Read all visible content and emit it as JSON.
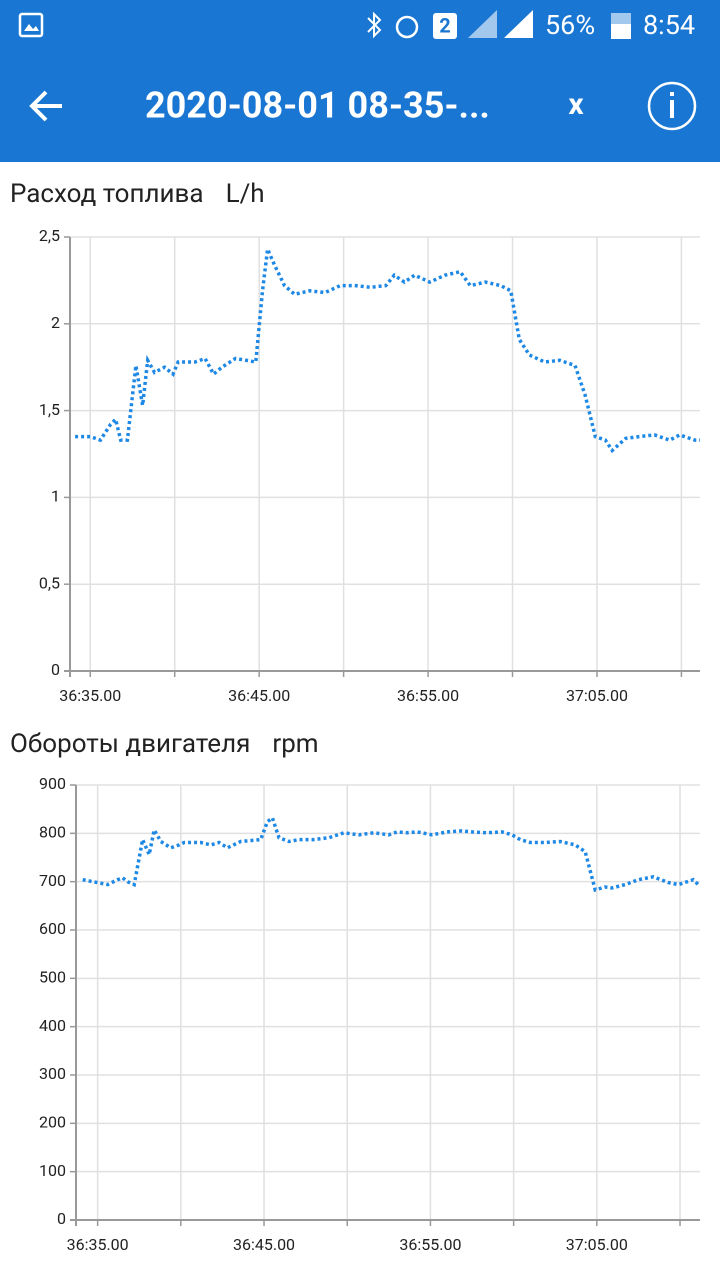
{
  "status_bar": {
    "sim": "2",
    "battery": "56%",
    "time": "8:54"
  },
  "app_bar": {
    "title": "2020-08-01 08-35-...",
    "close": "x"
  },
  "chart_data": [
    {
      "type": "line",
      "title": "Расход топлива",
      "unit": "L/h",
      "color": "#1e88e5",
      "grid": true,
      "x": [
        2194.1,
        2195.0,
        2195.6,
        2196.2,
        2196.5,
        2196.8,
        2197.2,
        2197.7,
        2198.1,
        2198.4,
        2198.8,
        2199.4,
        2199.9,
        2200.2,
        2201.2,
        2201.8,
        2202.3,
        2202.8,
        2203.6,
        2204.8,
        2205.2,
        2205.5,
        2205.9,
        2206.5,
        2207.1,
        2208.0,
        2208.9,
        2209.8,
        2210.7,
        2211.6,
        2212.5,
        2213.0,
        2213.6,
        2214.2,
        2215.1,
        2216.0,
        2216.9,
        2217.5,
        2218.4,
        2219.3,
        2219.9,
        2220.4,
        2221.0,
        2221.9,
        2222.8,
        2223.7,
        2224.3,
        2224.9,
        2225.5,
        2225.9,
        2226.7,
        2227.5,
        2228.4,
        2229.3,
        2229.9,
        2230.8,
        2231.1
      ],
      "values": [
        1.35,
        1.35,
        1.33,
        1.42,
        1.45,
        1.33,
        1.33,
        1.76,
        1.53,
        1.79,
        1.72,
        1.75,
        1.71,
        1.78,
        1.78,
        1.8,
        1.71,
        1.75,
        1.8,
        1.78,
        2.19,
        2.43,
        2.34,
        2.22,
        2.17,
        2.19,
        2.18,
        2.22,
        2.22,
        2.21,
        2.22,
        2.28,
        2.24,
        2.28,
        2.24,
        2.28,
        2.3,
        2.22,
        2.24,
        2.22,
        2.19,
        1.91,
        1.82,
        1.78,
        1.79,
        1.76,
        1.59,
        1.35,
        1.33,
        1.27,
        1.34,
        1.35,
        1.36,
        1.33,
        1.36,
        1.33,
        1.33
      ],
      "xlim": [
        2193.8,
        2231.1
      ],
      "xticks": [
        {
          "value": 2195,
          "label": "36:35.00"
        },
        {
          "value": 2205,
          "label": "36:45.00"
        },
        {
          "value": 2215,
          "label": "36:55.00"
        },
        {
          "value": 2225,
          "label": "37:05.00"
        }
      ],
      "xminor": [
        2200,
        2210,
        2220,
        2230
      ],
      "ylim": [
        0,
        2.5
      ],
      "yticks": [
        0,
        {
          "value": 0.5,
          "label": "0,5"
        },
        1,
        {
          "value": 1.5,
          "label": "1,5"
        },
        2,
        {
          "value": 2.5,
          "label": "2,5"
        }
      ]
    },
    {
      "type": "line",
      "title": "Обороты двигателя",
      "unit": "rpm",
      "color": "#1e88e5",
      "grid": true,
      "x": [
        2194.1,
        2195.0,
        2195.6,
        2196.2,
        2196.5,
        2196.8,
        2197.2,
        2197.7,
        2198.1,
        2198.4,
        2198.8,
        2199.4,
        2199.9,
        2200.2,
        2201.2,
        2201.8,
        2202.3,
        2202.8,
        2203.6,
        2204.8,
        2205.2,
        2205.5,
        2205.9,
        2206.5,
        2207.1,
        2208.0,
        2208.9,
        2209.8,
        2210.7,
        2211.6,
        2212.5,
        2213.0,
        2213.6,
        2214.2,
        2215.1,
        2216.0,
        2216.9,
        2217.5,
        2218.4,
        2219.3,
        2219.9,
        2220.4,
        2221.0,
        2221.9,
        2222.8,
        2223.7,
        2224.3,
        2224.9,
        2225.5,
        2225.9,
        2226.7,
        2227.5,
        2228.4,
        2229.3,
        2229.9,
        2230.8,
        2231.1
      ],
      "values": [
        704,
        698,
        694,
        704,
        708,
        700,
        694,
        787,
        756,
        807,
        783,
        770,
        776,
        781,
        781,
        776,
        781,
        770,
        783,
        787,
        824,
        832,
        791,
        783,
        787,
        787,
        791,
        801,
        797,
        801,
        797,
        803,
        801,
        803,
        797,
        803,
        805,
        803,
        801,
        803,
        797,
        787,
        781,
        781,
        783,
        776,
        762,
        683,
        689,
        687,
        694,
        704,
        710,
        698,
        694,
        704,
        694
      ],
      "xlim": [
        2193.7,
        2231.2
      ],
      "xticks": [
        {
          "value": 2195,
          "label": "36:35.00"
        },
        {
          "value": 2205,
          "label": "36:45.00"
        },
        {
          "value": 2215,
          "label": "36:55.00"
        },
        {
          "value": 2225,
          "label": "37:05.00"
        }
      ],
      "xminor": [
        2200,
        2210,
        2220,
        2230
      ],
      "ylim": [
        0,
        900
      ],
      "yticks": [
        0,
        100,
        200,
        300,
        400,
        500,
        600,
        700,
        800,
        900
      ]
    }
  ]
}
